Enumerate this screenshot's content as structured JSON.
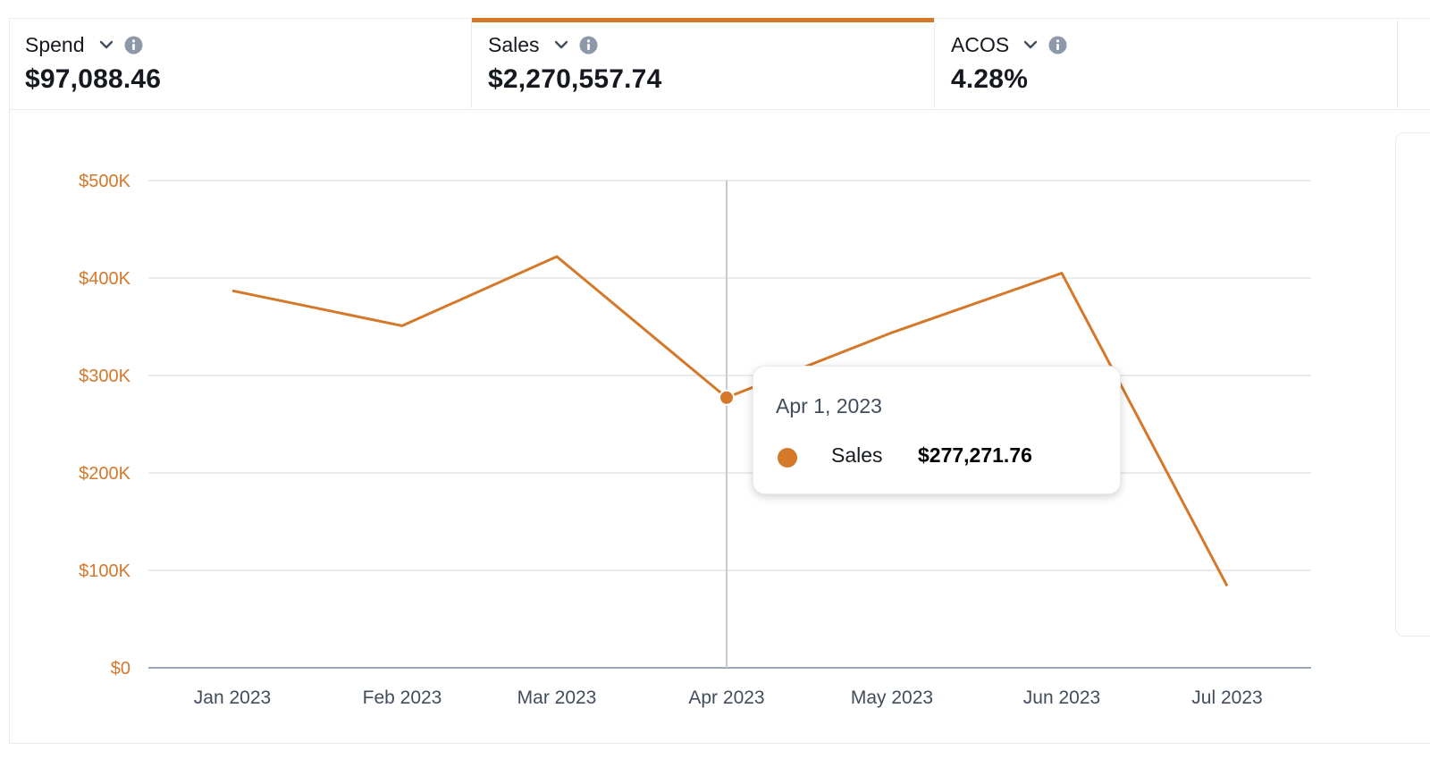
{
  "colors": {
    "accent": "#d4782a",
    "grid": "#e9ebed",
    "axis": "#9ba7b6"
  },
  "metrics": [
    {
      "label": "Spend",
      "value": "$97,088.46",
      "active": false
    },
    {
      "label": "Sales",
      "value": "$2,270,557.74",
      "active": true
    },
    {
      "label": "ACOS",
      "value": "4.28%",
      "active": false
    }
  ],
  "icons": {
    "chevron": "chevron-down-icon",
    "info": "info-icon"
  },
  "tooltip": {
    "date": "Apr 1, 2023",
    "series": "Sales",
    "value": "$277,271.76"
  },
  "chart_data": {
    "type": "line",
    "title": "",
    "xlabel": "",
    "ylabel": "",
    "categories": [
      "Jan 2023",
      "Feb 2023",
      "Mar 2023",
      "Apr 2023",
      "May 2023",
      "Jun 2023",
      "Jul 2023"
    ],
    "series": [
      {
        "name": "Sales",
        "values": [
          387000,
          351000,
          422000,
          277271.76,
          344000,
          405000,
          84000
        ]
      }
    ],
    "yticks": [
      0,
      100000,
      200000,
      300000,
      400000,
      500000
    ],
    "ytick_labels": [
      "$0",
      "$100K",
      "$200K",
      "$300K",
      "$400K",
      "$500K"
    ],
    "ylim": [
      0,
      500000
    ],
    "grid": true,
    "highlight_index": 3
  }
}
